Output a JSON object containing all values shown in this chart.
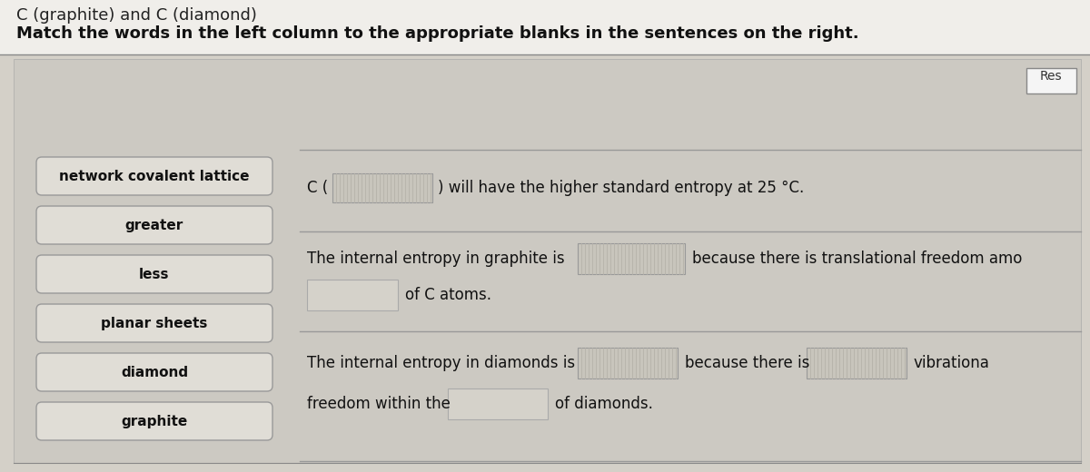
{
  "title_line1": "C (graphite) and C (diamond)",
  "title_line2": "Match the words in the left column to the appropriate blanks in the sentences on the right.",
  "outer_bg": "#d4d1ca",
  "panel_bg": "#ccc9c2",
  "left_box_bg": "#e8e6e0",
  "left_box_ec": "#999999",
  "blank_hatched_bg": "#c8c5be",
  "blank_plain_bg": "#d8d5ce",
  "blank_ec": "#aaaaaa",
  "sep_color": "#999999",
  "text_color": "#111111",
  "reset_bg": "#ffffff",
  "reset_ec": "#888888",
  "left_labels": [
    "network covalent lattice",
    "greater",
    "less",
    "planar sheets",
    "diamond",
    "graphite"
  ],
  "reset_label": "Res",
  "font_size_title1": 13,
  "font_size_title2": 13,
  "font_size_labels": 11,
  "font_size_sentences": 11
}
